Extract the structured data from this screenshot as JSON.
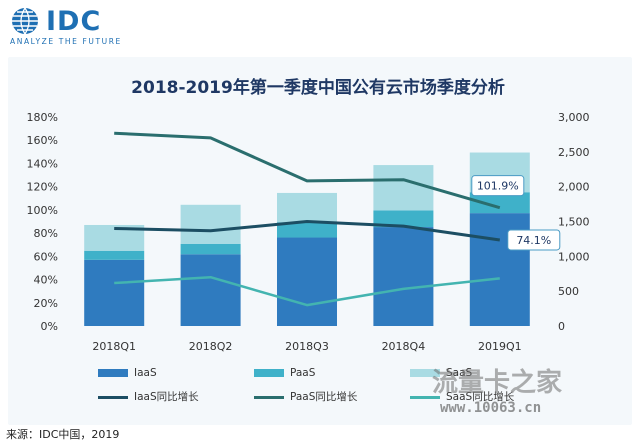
{
  "logo": {
    "text": "IDC",
    "tagline": "ANALYZE THE FUTURE"
  },
  "source": "来源：IDC中国，2019",
  "watermark": {
    "big": "流量卡之家",
    "small": "www.10063.cn"
  },
  "colors": {
    "iaas": "#2f7bbf",
    "paas": "#3fb1c9",
    "saas": "#a9dbe3",
    "iaas_growth": "#1c4e63",
    "paas_growth": "#2a6e6e",
    "saas_growth": "#43b4b0",
    "frame": "#f4f8fb",
    "title": "#1f3864"
  },
  "chart_data": {
    "type": "bar",
    "stacked": true,
    "title": "2018-2019年第一季度中国公有云市场季度分析",
    "categories": [
      "2018Q1",
      "2018Q2",
      "2018Q3",
      "2018Q4",
      "2019Q1"
    ],
    "y_left": {
      "ticks": [
        "0%",
        "20%",
        "40%",
        "60%",
        "80%",
        "100%",
        "120%",
        "140%",
        "160%",
        "180%"
      ],
      "range": [
        0,
        180
      ]
    },
    "y_right": {
      "ticks": [
        "0",
        "500",
        "1,000",
        "1,500",
        "2,000",
        "2,500",
        "3,000"
      ],
      "range": [
        0,
        3000
      ]
    },
    "bar_series": [
      {
        "name": "IaaS",
        "axis": "right",
        "values": [
          950,
          1030,
          1270,
          1420,
          1620
        ]
      },
      {
        "name": "PaaS",
        "axis": "right",
        "values": [
          130,
          150,
          220,
          240,
          300
        ]
      },
      {
        "name": "SaaS",
        "axis": "right",
        "values": [
          370,
          560,
          420,
          650,
          570
        ]
      }
    ],
    "line_series": [
      {
        "name": "IaaS同比增长",
        "axis": "left",
        "values": [
          84,
          82,
          90,
          86,
          74.1
        ]
      },
      {
        "name": "PaaS同比增长",
        "axis": "left",
        "values": [
          166,
          162,
          125,
          126,
          101.9
        ]
      },
      {
        "name": "SaaS同比增长",
        "axis": "left",
        "values": [
          37,
          42,
          18,
          32,
          41
        ]
      }
    ],
    "annotations": [
      {
        "text": "101.9%",
        "series": "PaaS同比增长",
        "category": "2019Q1"
      },
      {
        "text": "74.1%",
        "series": "IaaS同比增长",
        "category": "2019Q1"
      }
    ],
    "legend_position": "bottom",
    "grid": false
  }
}
